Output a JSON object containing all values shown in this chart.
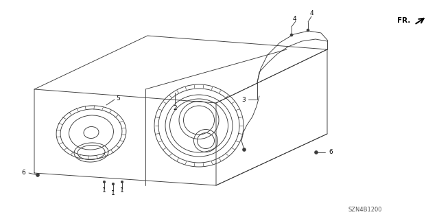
{
  "part_number": "SZN4B1200",
  "bg_color": "#ffffff",
  "line_color": "#3a3a3a",
  "lw": 0.65,
  "fig_w": 6.4,
  "fig_h": 3.19,
  "dpi": 100
}
